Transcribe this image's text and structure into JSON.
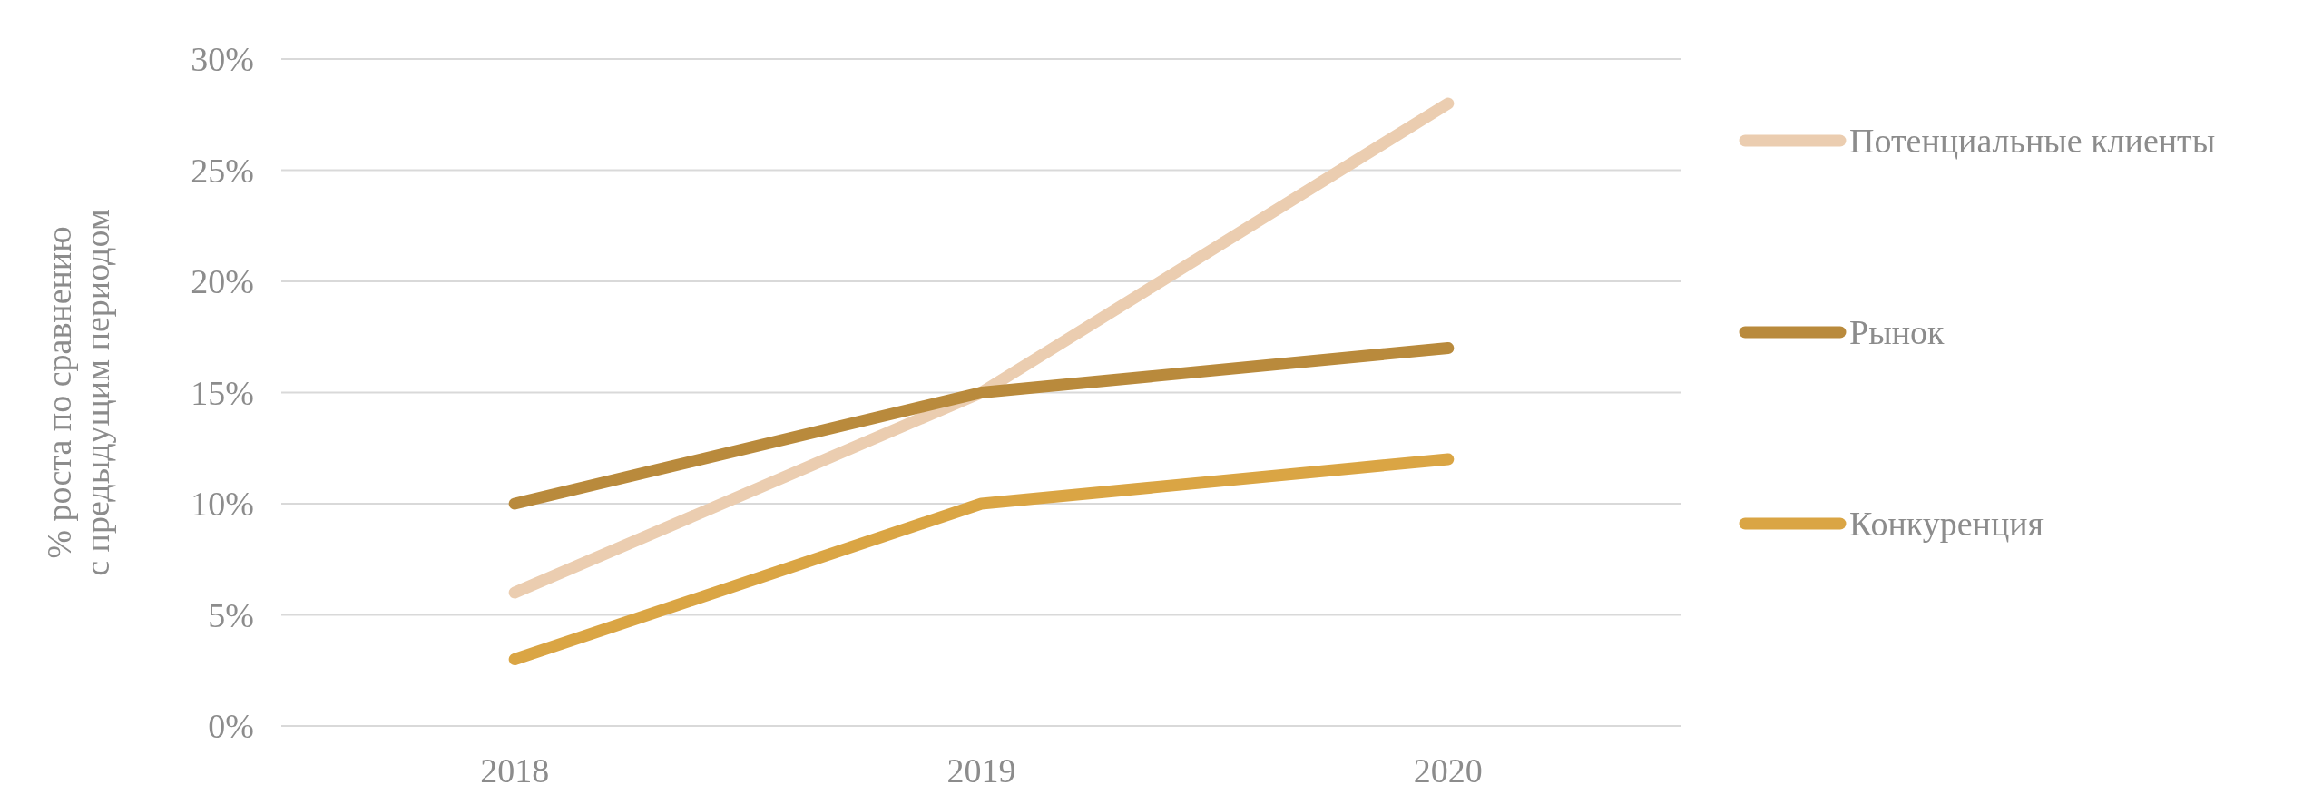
{
  "chart_data": {
    "type": "line",
    "ylabel": "% роста по сравнению с предыдущим периодом",
    "categories": [
      "2018",
      "2019",
      "2020"
    ],
    "series": [
      {
        "name": "Потенциальные клиенты",
        "color": "#ebcdb0",
        "values": [
          6,
          15,
          28
        ]
      },
      {
        "name": "Рынок",
        "color": "#b98a3c",
        "values": [
          10,
          15,
          17
        ]
      },
      {
        "name": "Конкуренция",
        "color": "#daa544",
        "values": [
          3,
          10,
          12
        ]
      }
    ],
    "ylim": [
      0,
      30
    ],
    "yticks": [
      {
        "value": 0,
        "label": "0%"
      },
      {
        "value": 5,
        "label": "5%"
      },
      {
        "value": 10,
        "label": "10%"
      },
      {
        "value": 15,
        "label": "15%"
      },
      {
        "value": 20,
        "label": "20%"
      },
      {
        "value": 25,
        "label": "25%"
      },
      {
        "value": 30,
        "label": "30%"
      }
    ],
    "grid": "y",
    "legend": "right",
    "marker": "none",
    "line_style": "solid"
  }
}
